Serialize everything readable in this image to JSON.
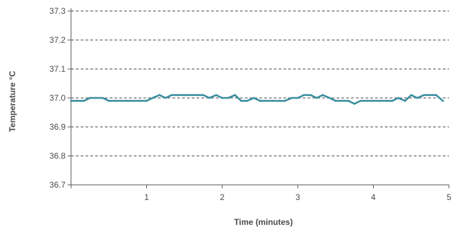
{
  "chart_data": {
    "type": "line",
    "title": "",
    "xlabel": "Time (minutes)",
    "ylabel": "Temperature °C",
    "xlim": [
      0,
      5
    ],
    "ylim": [
      36.7,
      37.3
    ],
    "grid": true,
    "legend": "none",
    "colors": {
      "line": "#3a8ea0",
      "grid": "#444444",
      "axis": "#555555",
      "text": "#4a4a4a"
    },
    "x_ticks": [
      1,
      2,
      3,
      4,
      5
    ],
    "x_tick_labels": [
      "1",
      "2",
      "3",
      "4",
      "5"
    ],
    "y_ticks": [
      36.7,
      36.8,
      36.9,
      37.0,
      37.1,
      37.2,
      37.3
    ],
    "y_tick_labels": [
      "36.7",
      "36.8",
      "36.9",
      "37.0",
      "37.1",
      "37.2",
      "37.3"
    ],
    "series": [
      {
        "values": [
          [
            0.0,
            36.99
          ],
          [
            0.08,
            36.99
          ],
          [
            0.17,
            36.99
          ],
          [
            0.25,
            37.0
          ],
          [
            0.33,
            37.0
          ],
          [
            0.42,
            37.0
          ],
          [
            0.5,
            36.99
          ],
          [
            0.58,
            36.99
          ],
          [
            0.67,
            36.99
          ],
          [
            0.75,
            36.99
          ],
          [
            0.83,
            36.99
          ],
          [
            0.92,
            36.99
          ],
          [
            1.0,
            36.99
          ],
          [
            1.08,
            37.0
          ],
          [
            1.17,
            37.01
          ],
          [
            1.25,
            37.0
          ],
          [
            1.33,
            37.01
          ],
          [
            1.42,
            37.01
          ],
          [
            1.5,
            37.01
          ],
          [
            1.58,
            37.01
          ],
          [
            1.67,
            37.01
          ],
          [
            1.75,
            37.01
          ],
          [
            1.83,
            37.0
          ],
          [
            1.92,
            37.01
          ],
          [
            2.0,
            37.0
          ],
          [
            2.08,
            37.0
          ],
          [
            2.17,
            37.01
          ],
          [
            2.25,
            36.99
          ],
          [
            2.33,
            36.99
          ],
          [
            2.42,
            37.0
          ],
          [
            2.5,
            36.99
          ],
          [
            2.58,
            36.99
          ],
          [
            2.67,
            36.99
          ],
          [
            2.75,
            36.99
          ],
          [
            2.83,
            36.99
          ],
          [
            2.92,
            37.0
          ],
          [
            3.0,
            37.0
          ],
          [
            3.08,
            37.01
          ],
          [
            3.17,
            37.01
          ],
          [
            3.25,
            37.0
          ],
          [
            3.33,
            37.01
          ],
          [
            3.42,
            37.0
          ],
          [
            3.5,
            36.99
          ],
          [
            3.58,
            36.99
          ],
          [
            3.67,
            36.99
          ],
          [
            3.75,
            36.98
          ],
          [
            3.83,
            36.99
          ],
          [
            3.92,
            36.99
          ],
          [
            4.0,
            36.99
          ],
          [
            4.08,
            36.99
          ],
          [
            4.17,
            36.99
          ],
          [
            4.25,
            36.99
          ],
          [
            4.33,
            37.0
          ],
          [
            4.42,
            36.99
          ],
          [
            4.5,
            37.01
          ],
          [
            4.58,
            37.0
          ],
          [
            4.67,
            37.01
          ],
          [
            4.75,
            37.01
          ],
          [
            4.83,
            37.01
          ],
          [
            4.92,
            36.99
          ]
        ]
      }
    ]
  }
}
